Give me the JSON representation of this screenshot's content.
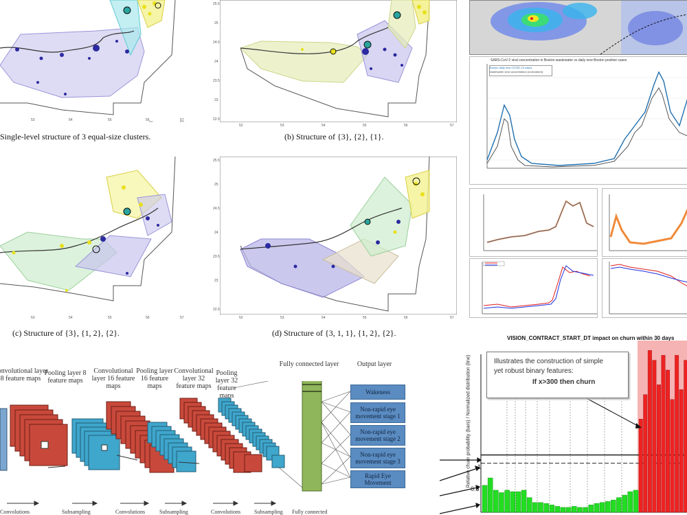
{
  "captions": {
    "a": "Single-level structure of 3 equal-size clusters.",
    "b": "(b) Structure of {3}, {2}, {1}.",
    "c": "(c) Structure of {3}, {1, 2}, {2}.",
    "d": "(d) Structure of {3, 1, 1}, {1, 2}, {2}."
  },
  "map_ticks": {
    "left_x": [
      "53",
      "54",
      "55",
      "56",
      "57"
    ],
    "right_x": [
      "52",
      "53",
      "54",
      "55",
      "56",
      "57"
    ],
    "right_y": [
      "25.5",
      "25",
      "24.5",
      "24",
      "23.5",
      "23",
      "22.5"
    ]
  },
  "covid": {
    "title": "SARS-CoV-2 viral concentration in Boston wastewater vs daily new Boston positive cases",
    "legend": [
      "Boston daily new COVID-19 cases",
      "wastewater viral concentration (normalized)"
    ]
  },
  "cnn": {
    "layers": [
      "Convolutional layer 8 feature maps",
      "Pooling layer 8 feature maps",
      "Convolutional layer 16 feature maps",
      "Pooling layer 16 feature maps",
      "Convolutional layer 32 feature maps",
      "Pooling layer 32 feature maps",
      "Fully connected layer",
      "Output layer"
    ],
    "outputs": [
      "Wakeness",
      "Non-rapid eye movement stage 1",
      "Non-rapid eye movement stage 2",
      "Non-rapid eye movement stage 3",
      "Rapid Eye Movement"
    ],
    "bottom": [
      "Convolutions",
      "Subsampling",
      "Convolutions",
      "Subsampling",
      "Convolutions",
      "Subsampling",
      "Fully connected"
    ]
  },
  "churn": {
    "title": "VISION_CONTRACT_START_DT impact on churn within 30 days",
    "note_line1": "Illustrates the construction of simple",
    "note_line2": "yet robust binary features:",
    "note_rule": "If x>300 then churn",
    "ylabel": "Relative churn probability (bars) / Normalized distribution (line)",
    "yticks": [
      "1",
      "0.5"
    ],
    "colors": {
      "low": "#22dd22",
      "high": "#ee2222"
    },
    "chart_data": {
      "type": "bar",
      "ylim": [
        0,
        3.5
      ],
      "series": [
        {
          "values": [
            0.55,
            0.7,
            0.45,
            0.4,
            0.45,
            0.42,
            0.42,
            0.45,
            0.3,
            0.2,
            0.2,
            0.18,
            0.15,
            0.12,
            0.1,
            0.1,
            0.12,
            0.1,
            0.1,
            0.15,
            0.18,
            0.2,
            0.22,
            0.25,
            0.3,
            0.35,
            0.42,
            0.45
          ]
        },
        {
          "values": [
            1.9,
            2.4,
            3.3,
            3.1,
            2.6,
            3.2,
            2.9,
            2.3,
            3.2,
            2.5,
            3.1
          ]
        }
      ]
    }
  }
}
